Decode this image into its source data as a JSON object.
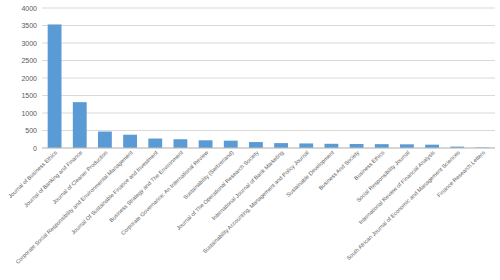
{
  "chart_data": {
    "type": "bar",
    "categories": [
      "Journal of Business Ethics",
      "Journal of Banking and Finance",
      "Journal of Cleaner Production",
      "Corporate Social Responsibility and Environmental Management",
      "Journal Of Sustainable Finance and Investment",
      "Business Strategy and The Environment",
      "Corporate Governance: An International Review",
      "Sustainability (Switzerland)",
      "Journal of The Operational Research Society",
      "International Journal of Bank Marketing",
      "Sustainability Accounting, Management and Policy Journal",
      "Sustainable Development",
      "Business And Society",
      "Business Ethics",
      "Social Responsibility Journal",
      "International Review of Financial Analysis",
      "South African Journal of Economic and Management Sciences",
      "Finance Research Letters"
    ],
    "values": [
      3530,
      1310,
      470,
      380,
      270,
      250,
      220,
      210,
      170,
      140,
      130,
      120,
      115,
      110,
      105,
      95,
      40,
      15
    ],
    "color": "#5b9bd5",
    "ylim": [
      0,
      4000
    ],
    "yticks": [
      0,
      500,
      1000,
      1500,
      2000,
      2500,
      3000,
      3500,
      4000
    ],
    "grid": true
  }
}
